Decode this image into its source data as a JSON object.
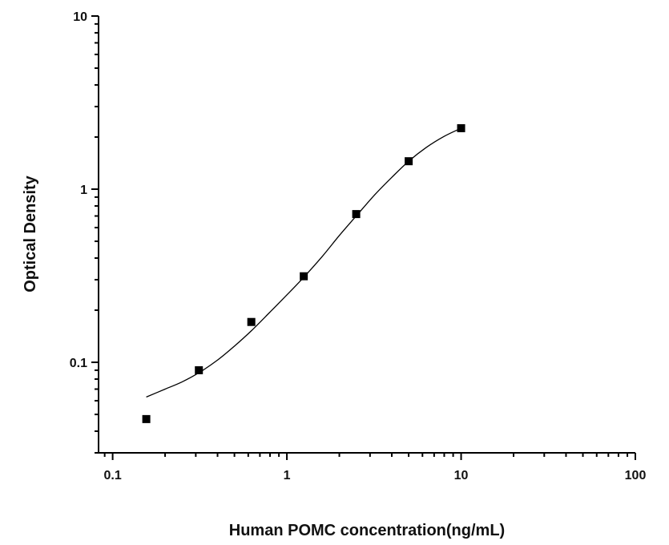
{
  "chart_data": {
    "type": "scatter",
    "title": "",
    "xlabel": "Human POMC concentration(ng/mL)",
    "ylabel": "Optical Density",
    "xscale": "log",
    "yscale": "log",
    "xlim": [
      0.083,
      100
    ],
    "ylim": [
      0.03,
      10
    ],
    "grid": false,
    "legend": "none",
    "x_ticks": [
      {
        "value": 0.1,
        "label": "0.1"
      },
      {
        "value": 1,
        "label": "1"
      },
      {
        "value": 10,
        "label": "10"
      },
      {
        "value": 100,
        "label": "100"
      }
    ],
    "y_ticks": [
      {
        "value": 0.1,
        "label": "0.1"
      },
      {
        "value": 1,
        "label": "1"
      },
      {
        "value": 10,
        "label": "10"
      }
    ],
    "points": {
      "marker": "square",
      "color": "#000000",
      "x": [
        0.156,
        0.3125,
        0.625,
        1.25,
        2.5,
        5,
        10
      ],
      "y": [
        0.047,
        0.09,
        0.171,
        0.314,
        0.718,
        1.45,
        2.25
      ]
    },
    "fit_curve": {
      "color": "#000000",
      "x": [
        0.156,
        0.2,
        0.25,
        0.3125,
        0.4,
        0.5,
        0.625,
        0.8,
        1.0,
        1.25,
        1.6,
        2.0,
        2.5,
        3.2,
        4.0,
        5.0,
        6.3,
        8.0,
        10
      ],
      "y": [
        0.063,
        0.07,
        0.077,
        0.087,
        0.103,
        0.124,
        0.152,
        0.195,
        0.245,
        0.31,
        0.41,
        0.54,
        0.7,
        0.93,
        1.17,
        1.45,
        1.74,
        2.02,
        2.25
      ]
    }
  }
}
